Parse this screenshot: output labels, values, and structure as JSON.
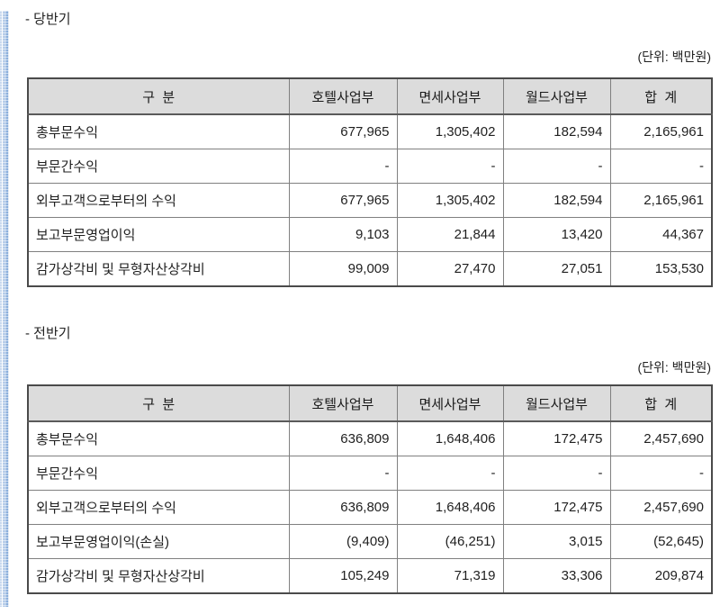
{
  "document": {
    "colors": {
      "header_bg": "#dcdcdc",
      "outer_border": "#4a4a4a",
      "inner_border": "#808080",
      "edge_blue": "#8aaedb",
      "text": "#1f1f1f"
    },
    "sections": [
      {
        "title": "- 당반기",
        "unit_label": "(단위: 백만원)",
        "table": {
          "headers": [
            "구  분",
            "호텔사업부",
            "면세사업부",
            "월드사업부",
            "합  계"
          ],
          "rows": [
            {
              "label": "총부문수익",
              "values": [
                "677,965",
                "1,305,402",
                "182,594",
                "2,165,961"
              ]
            },
            {
              "label": "부문간수익",
              "values": [
                "-",
                "-",
                "-",
                "-"
              ]
            },
            {
              "label": "외부고객으로부터의 수익",
              "values": [
                "677,965",
                "1,305,402",
                "182,594",
                "2,165,961"
              ]
            },
            {
              "label": "보고부문영업이익",
              "values": [
                "9,103",
                "21,844",
                "13,420",
                "44,367"
              ]
            },
            {
              "label": "감가상각비 및 무형자산상각비",
              "values": [
                "99,009",
                "27,470",
                "27,051",
                "153,530"
              ]
            }
          ]
        }
      },
      {
        "title": "- 전반기",
        "unit_label": "(단위: 백만원)",
        "table": {
          "headers": [
            "구  분",
            "호텔사업부",
            "면세사업부",
            "월드사업부",
            "합  계"
          ],
          "rows": [
            {
              "label": "총부문수익",
              "values": [
                "636,809",
                "1,648,406",
                "172,475",
                "2,457,690"
              ]
            },
            {
              "label": "부문간수익",
              "values": [
                "-",
                "-",
                "-",
                "-"
              ]
            },
            {
              "label": "외부고객으로부터의 수익",
              "values": [
                "636,809",
                "1,648,406",
                "172,475",
                "2,457,690"
              ]
            },
            {
              "label": "보고부문영업이익(손실)",
              "values": [
                "(9,409)",
                "(46,251)",
                "3,015",
                "(52,645)"
              ]
            },
            {
              "label": "감가상각비 및 무형자산상각비",
              "values": [
                "105,249",
                "71,319",
                "33,306",
                "209,874"
              ]
            }
          ]
        }
      }
    ]
  }
}
